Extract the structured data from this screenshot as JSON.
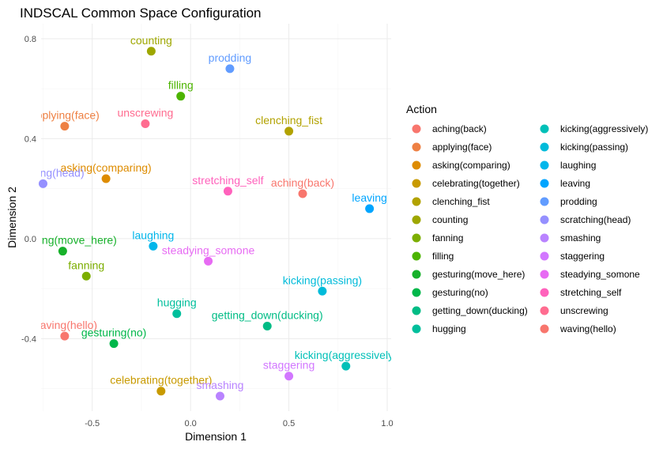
{
  "chart_data": {
    "type": "scatter",
    "title": "INDSCAL Common Space Configuration",
    "xlabel": "Dimension 1",
    "ylabel": "Dimension 2",
    "xlim": [
      -0.76,
      1.02
    ],
    "ylim": [
      -0.69,
      0.86
    ],
    "xticks": [
      -0.5,
      0.0,
      0.5,
      1.0
    ],
    "xtick_labels": [
      "-0.5",
      "0.0",
      "0.5",
      "1.0"
    ],
    "yticks": [
      -0.4,
      0.0,
      0.4,
      0.8
    ],
    "ytick_labels": [
      "-0.4",
      "0.0",
      "0.4",
      "0.8"
    ],
    "grid": true,
    "legend": {
      "title": "Action",
      "placement": "right",
      "columns": 2
    },
    "points": [
      {
        "name": "aching(back)",
        "x": 0.57,
        "y": 0.18,
        "color": "#F8766D"
      },
      {
        "name": "applying(face)",
        "x": -0.64,
        "y": 0.45,
        "color": "#EE8043"
      },
      {
        "name": "asking(comparing)",
        "x": -0.43,
        "y": 0.24,
        "color": "#DE8C00"
      },
      {
        "name": "celebrating(together)",
        "x": -0.15,
        "y": -0.61,
        "color": "#C89A00"
      },
      {
        "name": "clenching_fist",
        "x": 0.5,
        "y": 0.43,
        "color": "#B2A200"
      },
      {
        "name": "counting",
        "x": -0.2,
        "y": 0.75,
        "color": "#9EA700"
      },
      {
        "name": "fanning",
        "x": -0.53,
        "y": -0.15,
        "color": "#7CAE00"
      },
      {
        "name": "filling",
        "x": -0.05,
        "y": 0.57,
        "color": "#4CB400"
      },
      {
        "name": "gesturing(move_here)",
        "x": -0.65,
        "y": -0.05,
        "color": "#17B12B"
      },
      {
        "name": "gesturing(no)",
        "x": -0.39,
        "y": -0.42,
        "color": "#00B74A"
      },
      {
        "name": "getting_down(ducking)",
        "x": 0.39,
        "y": -0.35,
        "color": "#00BC85"
      },
      {
        "name": "hugging",
        "x": -0.07,
        "y": -0.3,
        "color": "#00BF9C"
      },
      {
        "name": "kicking(aggressively)",
        "x": 0.79,
        "y": -0.51,
        "color": "#00C0B8"
      },
      {
        "name": "kicking(passing)",
        "x": 0.67,
        "y": -0.21,
        "color": "#00BBDA"
      },
      {
        "name": "laughing",
        "x": -0.19,
        "y": -0.03,
        "color": "#00B6EB"
      },
      {
        "name": "leaving",
        "x": 0.91,
        "y": 0.12,
        "color": "#00A5FF"
      },
      {
        "name": "prodding",
        "x": 0.2,
        "y": 0.68,
        "color": "#619CFF"
      },
      {
        "name": "scratching(head)",
        "x": -0.75,
        "y": 0.22,
        "color": "#9590FF"
      },
      {
        "name": "smashing",
        "x": 0.15,
        "y": -0.63,
        "color": "#B983FF"
      },
      {
        "name": "staggering",
        "x": 0.5,
        "y": -0.55,
        "color": "#D277FF"
      },
      {
        "name": "steadying_somone",
        "x": 0.09,
        "y": -0.09,
        "color": "#E76BF3"
      },
      {
        "name": "stretching_self",
        "x": 0.19,
        "y": 0.19,
        "color": "#FF62BC"
      },
      {
        "name": "unscrewing",
        "x": -0.23,
        "y": 0.46,
        "color": "#FF6C90"
      },
      {
        "name": "waving(hello)",
        "x": -0.64,
        "y": -0.39,
        "color": "#F8766D"
      }
    ]
  }
}
